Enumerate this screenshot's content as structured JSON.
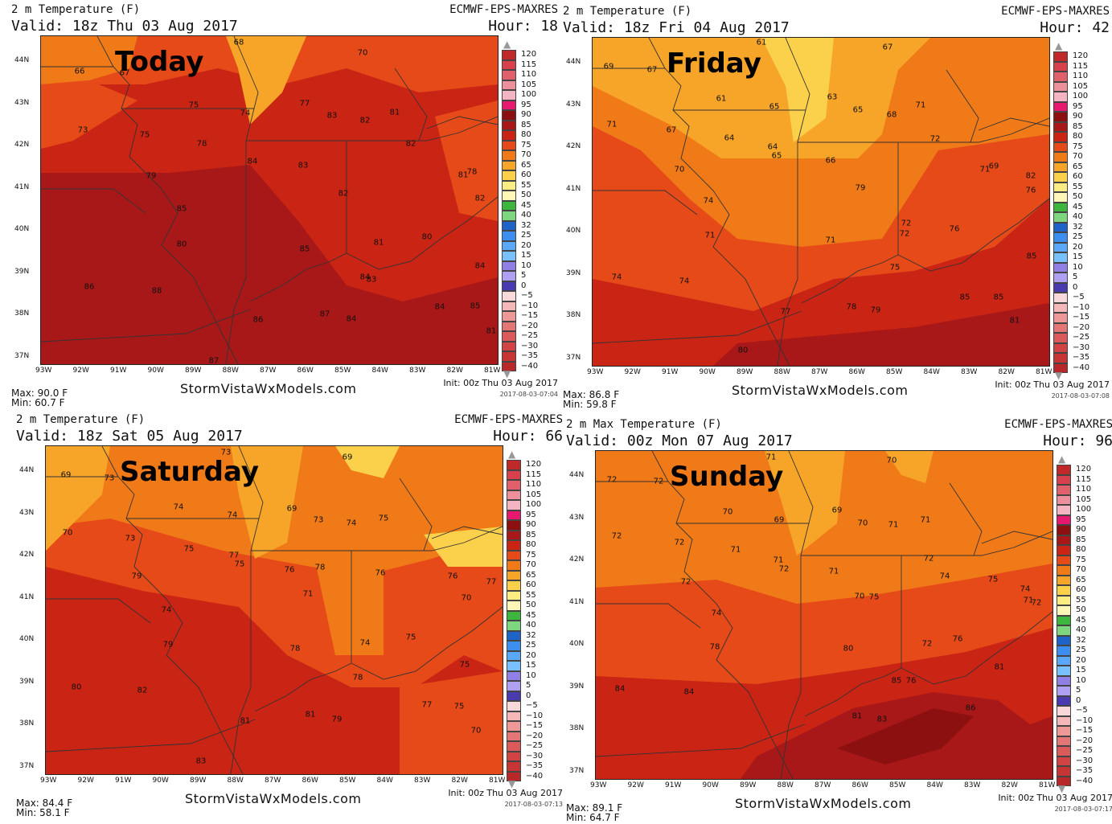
{
  "colorbar": {
    "labels": [
      "120",
      "115",
      "110",
      "105",
      "100",
      "95",
      "90",
      "85",
      "80",
      "75",
      "70",
      "65",
      "60",
      "55",
      "50",
      "45",
      "40",
      "32",
      "25",
      "20",
      "15",
      "10",
      "5",
      "0",
      "−5",
      "−10",
      "−15",
      "−20",
      "−25",
      "−30",
      "−35",
      "−40"
    ],
    "colors": [
      "#c0282a",
      "#d8404c",
      "#e2606b",
      "#ee8f9c",
      "#f4b4c2",
      "#e6196e",
      "#8c1010",
      "#a81818",
      "#c92414",
      "#e64a18",
      "#f07a18",
      "#f7a528",
      "#fbd04a",
      "#fcec82",
      "#fff6b8",
      "#3cb63c",
      "#7ed67e",
      "#1e64c8",
      "#3c8ef0",
      "#5aa8fa",
      "#78c0fe",
      "#9080e6",
      "#b0a0f4",
      "#4a3ab0",
      "#f8d8d8",
      "#f4b8b8",
      "#ee9898",
      "#e47676",
      "#dc5a5a",
      "#d24444",
      "#c63434",
      "#b82828"
    ],
    "top_marker": "▲",
    "bottom_marker": "▼"
  },
  "panels": [
    {
      "title": "2 m Temperature (F)",
      "valid": "Valid: 18z Thu 03 Aug 2017",
      "model": "ECMWF-EPS-MAXRES",
      "hour": "Hour: 18",
      "day_label": "Today",
      "max": "Max: 90.0 F",
      "min": "Min: 60.7 F",
      "site": "StormVistaWxModels.com",
      "init": "Init: 00z Thu 03 Aug 2017",
      "stamp": "2017-08-03-07:04",
      "values": [
        "68",
        "70",
        "66",
        "67",
        "75",
        "74",
        "77",
        "83",
        "81",
        "73",
        "75",
        "82",
        "78",
        "82",
        "84",
        "83",
        "79",
        "82",
        "78",
        "81",
        "80",
        "85",
        "82",
        "80",
        "81",
        "80",
        "85",
        "84",
        "83",
        "84",
        "86",
        "88",
        "86",
        "87",
        "84",
        "84",
        "85",
        "81",
        "87"
      ]
    },
    {
      "title": "2 m Temperature (F)",
      "valid": "Valid: 18z Fri 04 Aug 2017",
      "model": "ECMWF-EPS-MAXRES",
      "hour": "Hour: 42",
      "day_label": "Friday",
      "max": "Max: 86.8 F",
      "min": "Min: 59.8 F",
      "site": "StormVistaWxModels.com",
      "init": "Init: 00z Thu 03 Aug 2017",
      "stamp": "2017-08-03-07:08",
      "values": [
        "61",
        "67",
        "69",
        "67",
        "61",
        "65",
        "63",
        "65",
        "68",
        "71",
        "71",
        "67",
        "64",
        "64",
        "65",
        "66",
        "72",
        "70",
        "71",
        "69",
        "74",
        "76",
        "79",
        "82",
        "71",
        "72",
        "71",
        "72",
        "76",
        "85",
        "74",
        "74",
        "75",
        "77",
        "78",
        "79",
        "85",
        "85",
        "81",
        "80"
      ]
    },
    {
      "title": "2 m Temperature (F)",
      "valid": "Valid: 18z Sat 05 Aug 2017",
      "model": "ECMWF-EPS-MAXRES",
      "hour": "Hour: 66",
      "day_label": "Saturday",
      "max": "Max: 84.4 F",
      "min": "Min: 58.1 F",
      "site": "StormVistaWxModels.com",
      "init": "Init: 00z Thu 03 Aug 2017",
      "stamp": "2017-08-03-07:13",
      "values": [
        "73",
        "69",
        "69",
        "73",
        "74",
        "74",
        "69",
        "73",
        "74",
        "75",
        "70",
        "73",
        "75",
        "77",
        "75",
        "78",
        "76",
        "76",
        "76",
        "77",
        "79",
        "74",
        "71",
        "70",
        "79",
        "75",
        "74",
        "78",
        "75",
        "80",
        "82",
        "78",
        "77",
        "75",
        "81",
        "81",
        "79",
        "70",
        "83"
      ]
    },
    {
      "title": "2 m Max Temperature (F)",
      "valid": "Valid: 00z Mon 07 Aug 2017",
      "model": "ECMWF-EPS-MAXRES",
      "hour": "Hour: 96",
      "day_label": "Sunday",
      "max": "Max: 89.1 F",
      "min": "Min: 64.7 F",
      "site": "StormVistaWxModels.com",
      "init": "Init: 00z Thu 03 Aug 2017",
      "stamp": "2017-08-03-07:17",
      "values": [
        "71",
        "70",
        "72",
        "72",
        "70",
        "69",
        "69",
        "70",
        "71",
        "71",
        "72",
        "72",
        "71",
        "71",
        "72",
        "71",
        "70",
        "72",
        "74",
        "75",
        "72",
        "71",
        "74",
        "72",
        "74",
        "75",
        "72",
        "78",
        "80",
        "76",
        "76",
        "85",
        "84",
        "81",
        "84",
        "86",
        "81",
        "83"
      ]
    }
  ],
  "lat_labels": [
    "44N",
    "43N",
    "42N",
    "41N",
    "40N",
    "39N",
    "38N",
    "37N"
  ],
  "lon_labels": [
    "93W",
    "92W",
    "91W",
    "90W",
    "89W",
    "88W",
    "87W",
    "86W",
    "85W",
    "84W",
    "83W",
    "82W",
    "81W"
  ]
}
